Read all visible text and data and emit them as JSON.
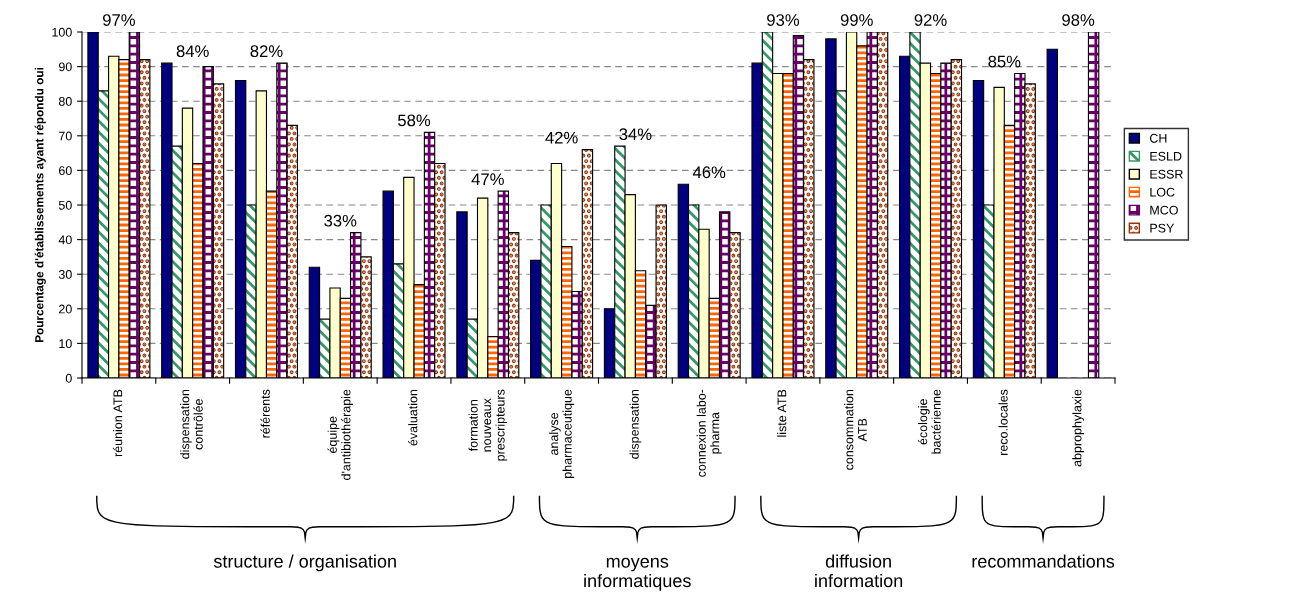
{
  "chart_data": {
    "type": "bar",
    "ylabel": "Pourcentage d'établissements ayant répondu oui",
    "categories": [
      "réunion ATB",
      "dispensation\ncontrôlée",
      "référents",
      "équipe\nd'antibiothérapie",
      "évaluation",
      "formation\nnouveaux\nprescripteurs",
      "analyse\npharmaceutique",
      "dispensation",
      "connexion labo-\npharma",
      "liste ATB",
      "consommation\nATB",
      "écologie\nbactérienne",
      "reco.locales",
      "abprophylaxie"
    ],
    "series": [
      {
        "name": "CH",
        "color": "#000080",
        "values": [
          100,
          91,
          86,
          32,
          54,
          48,
          34,
          20,
          56,
          91,
          98,
          93,
          86,
          95
        ]
      },
      {
        "name": "ESLD",
        "color": "#339966",
        "values": [
          83,
          67,
          50,
          17,
          33,
          17,
          50,
          67,
          50,
          100,
          83,
          100,
          50,
          null
        ]
      },
      {
        "name": "ESSR",
        "color": "#ffffcc",
        "values": [
          93,
          78,
          83,
          26,
          58,
          52,
          62,
          53,
          43,
          88,
          100,
          91,
          84,
          null
        ]
      },
      {
        "name": "LOC",
        "color": "#ff6600",
        "values": [
          92,
          62,
          54,
          23,
          27,
          12,
          38,
          31,
          23,
          88,
          96,
          88,
          73,
          null
        ]
      },
      {
        "name": "MCO",
        "color": "#660066",
        "values": [
          100,
          90,
          91,
          42,
          71,
          54,
          25,
          21,
          48,
          99,
          100,
          91,
          88,
          100
        ]
      },
      {
        "name": "PSY",
        "color": "#993300",
        "values": [
          92,
          85,
          73,
          35,
          62,
          42,
          66,
          50,
          42,
          92,
          100,
          92,
          85,
          null
        ]
      }
    ],
    "ylim": [
      0,
      100
    ],
    "yticks": [
      0,
      10,
      20,
      30,
      40,
      50,
      60,
      70,
      80,
      90,
      100
    ],
    "grid": "y",
    "legend": "right",
    "annotations": [
      "97%",
      "84%",
      "82%",
      "33%",
      "58%",
      "47%",
      "42%",
      "34%",
      "46%",
      "93%",
      "99%",
      "92%",
      "85%",
      "98%",
      "structure / organisation",
      "moyens\ninformatiques",
      "diffusion\ninformation",
      "recommandations"
    ]
  }
}
